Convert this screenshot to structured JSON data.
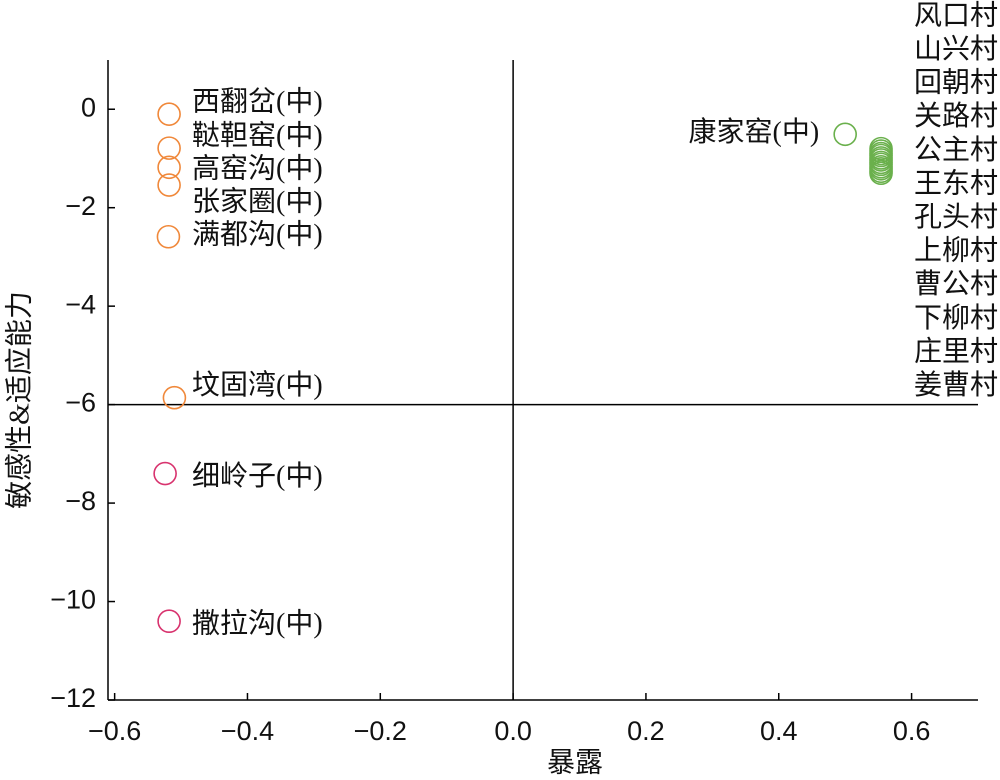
{
  "chart_data": {
    "type": "scatter",
    "x_label": "暴露",
    "y_label": "敏感性&适应能力",
    "xlim": [
      -0.61,
      0.7
    ],
    "ylim": [
      -12,
      1
    ],
    "xticks": [
      {
        "value": -0.6,
        "label": "−0.6"
      },
      {
        "value": -0.4,
        "label": "−0.4"
      },
      {
        "value": -0.2,
        "label": "−0.2"
      },
      {
        "value": 0,
        "label": "0.0"
      },
      0.2,
      0.4,
      0.6
    ],
    "yticks": [
      {
        "value": 0,
        "label": "0"
      },
      {
        "value": -2,
        "label": "−2"
      },
      {
        "value": -4,
        "label": "−4"
      },
      {
        "value": -6,
        "label": "−6"
      },
      {
        "value": -8,
        "label": "−8"
      },
      {
        "value": -10,
        "label": "−10"
      },
      {
        "value": -12,
        "label": "−12"
      }
    ],
    "reference_lines": {
      "x": 0,
      "y": -6
    },
    "series": [
      {
        "color": "#f0883a",
        "x": [
          -0.518,
          -0.518,
          -0.518,
          -0.518,
          -0.519,
          -0.51
        ],
        "y": [
          -0.1,
          -0.79,
          -1.18,
          -1.54,
          -2.59,
          -5.86
        ],
        "labels": [
          "西翻岔(中)",
          "鞑靼窑(中)",
          "高窑沟(中)",
          "张家圈(中)",
          "满都沟(中)",
          "坟固湾(中)"
        ]
      },
      {
        "color": "#d8336e",
        "x": [
          -0.524,
          -0.518
        ],
        "y": [
          -7.4,
          -10.4
        ],
        "labels": [
          "细岭子(中)",
          "撒拉沟(中)"
        ]
      },
      {
        "color": "#6ab04c",
        "x": [
          0.5,
          0.554,
          0.554,
          0.554,
          0.554,
          0.554,
          0.554,
          0.554,
          0.554,
          0.554,
          0.554,
          0.554,
          0.554
        ],
        "y": [
          -0.51,
          -0.8,
          -0.85,
          -0.9,
          -0.94,
          -0.99,
          -1.03,
          -1.08,
          -1.12,
          -1.17,
          -1.21,
          -1.26,
          -1.3
        ],
        "labels": [
          "康家窑(中)",
          "风口村",
          "山兴村",
          "回朝村",
          "关路村",
          "公主村",
          "王东村",
          "孔头村",
          "上柳村",
          "曹公村",
          "下柳村",
          "庄里村",
          "姜曹村"
        ]
      }
    ]
  }
}
